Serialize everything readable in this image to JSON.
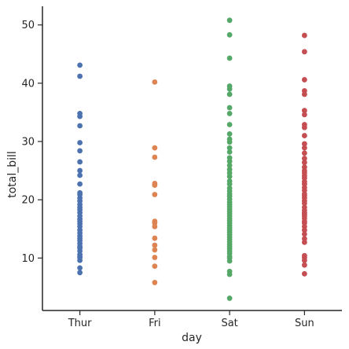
{
  "chart_data": {
    "type": "scatter",
    "title": "",
    "xlabel": "day",
    "ylabel": "total_bill",
    "categories": [
      "Thur",
      "Fri",
      "Sat",
      "Sun"
    ],
    "yticks": [
      10,
      20,
      30,
      40,
      50
    ],
    "ylim": [
      1.0,
      53.2
    ],
    "grid": false,
    "legend": "none",
    "series": [
      {
        "category": "Thur",
        "color": "#4c72b0",
        "values": [
          7.5,
          8.3,
          9.6,
          10.1,
          10.3,
          10.6,
          11.2,
          11.7,
          12.0,
          12.5,
          13.0,
          13.4,
          13.8,
          14.3,
          14.8,
          15.4,
          15.9,
          16.3,
          16.7,
          17.2,
          17.8,
          18.3,
          18.7,
          19.2,
          19.8,
          20.3,
          20.9,
          21.2,
          22.7,
          24.2,
          25.0,
          26.5,
          28.4,
          29.8,
          32.7,
          34.3,
          34.8,
          41.2,
          43.1
        ]
      },
      {
        "category": "Fri",
        "color": "#dd8452",
        "values": [
          5.8,
          8.6,
          10.1,
          11.4,
          12.2,
          13.4,
          15.4,
          16.0,
          16.3,
          20.9,
          22.5,
          22.8,
          27.3,
          28.9,
          40.2
        ]
      },
      {
        "category": "Sat",
        "color": "#55a868",
        "values": [
          3.1,
          7.2,
          7.7,
          9.5,
          10.0,
          10.3,
          10.8,
          11.2,
          11.6,
          12.0,
          12.4,
          12.8,
          13.2,
          13.6,
          14.0,
          14.4,
          14.8,
          15.2,
          15.6,
          16.0,
          16.4,
          16.8,
          17.2,
          17.6,
          18.0,
          18.4,
          18.8,
          19.2,
          19.6,
          20.1,
          20.6,
          21.0,
          21.5,
          22.0,
          22.7,
          23.2,
          24.0,
          24.6,
          25.2,
          25.9,
          26.6,
          27.2,
          28.2,
          28.9,
          29.9,
          30.4,
          31.3,
          32.9,
          34.8,
          35.8,
          38.1,
          39.0,
          39.5,
          44.3,
          48.3,
          50.8
        ]
      },
      {
        "category": "Sun",
        "color": "#c44e52",
        "values": [
          7.3,
          8.8,
          9.6,
          10.1,
          10.4,
          12.7,
          13.3,
          14.1,
          14.8,
          15.4,
          16.0,
          16.3,
          16.8,
          17.2,
          17.5,
          17.8,
          18.2,
          18.7,
          19.4,
          19.8,
          20.3,
          20.7,
          21.0,
          21.6,
          22.1,
          22.7,
          23.1,
          23.7,
          24.1,
          24.6,
          25.0,
          25.6,
          26.4,
          27.1,
          28.0,
          28.9,
          29.6,
          31.0,
          32.4,
          32.9,
          34.6,
          35.3,
          38.1,
          38.7,
          40.6,
          45.4,
          48.2
        ]
      }
    ]
  }
}
